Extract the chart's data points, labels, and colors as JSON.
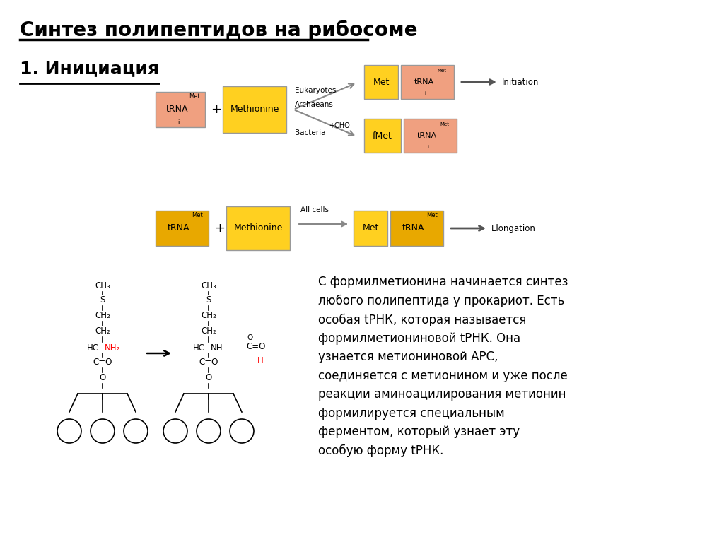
{
  "title": "Синтез полипептидов на рибосоме",
  "subtitle": "1. Инициация",
  "background_color": "#ffffff",
  "title_fontsize": 20,
  "subtitle_fontsize": 18,
  "box_colors": {
    "pink": "#F0A080",
    "yellow": "#FFD020",
    "dark_yellow": "#D08000",
    "orange_yellow": "#E8A800"
  },
  "paragraph_text": "С формилметионина начинается синтез\nлюбого полипептида у прокариот. Есть\nособая tРНК, которая называется\nформилметиониновой tРНК. Она\nузнается метиониновой АРС,\nсоединяется с метионином и уже после\nреакции аминоацилирования метионин\nформилируется специальным\nферментом, который узнает эту\nособую форму tРНК."
}
